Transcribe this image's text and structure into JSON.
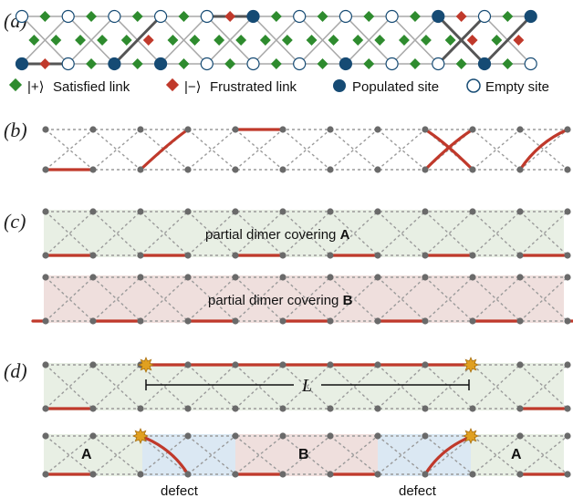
{
  "panels": {
    "a": {
      "label": "(a)"
    },
    "b": {
      "label": "(b)"
    },
    "c": {
      "label": "(c)",
      "cover_prefix": "partial dimer covering ",
      "cover_a": "A",
      "cover_b": "B"
    },
    "d": {
      "label": "(d)",
      "length": "L",
      "region_a": "A",
      "region_b": "B",
      "defect": "defect"
    }
  },
  "legend": {
    "satisfied": {
      "ket": "|+⟩",
      "text": "Satisfied link"
    },
    "frustrated": {
      "ket": "|−⟩",
      "text": "Frustrated link"
    },
    "populated": "Populated site",
    "empty": "Empty site"
  },
  "colors": {
    "satisfied": "#2e8b2e",
    "frustrated": "#c0392b",
    "populated": "#164b74",
    "dimer": "#c0392b",
    "lattice": "#9a9a9a",
    "site": "#6a6a6a",
    "region_a": "#e8efe4",
    "region_b": "#efdfdd",
    "defect_region": "#dbe8f3",
    "star": "#e0a020"
  }
}
